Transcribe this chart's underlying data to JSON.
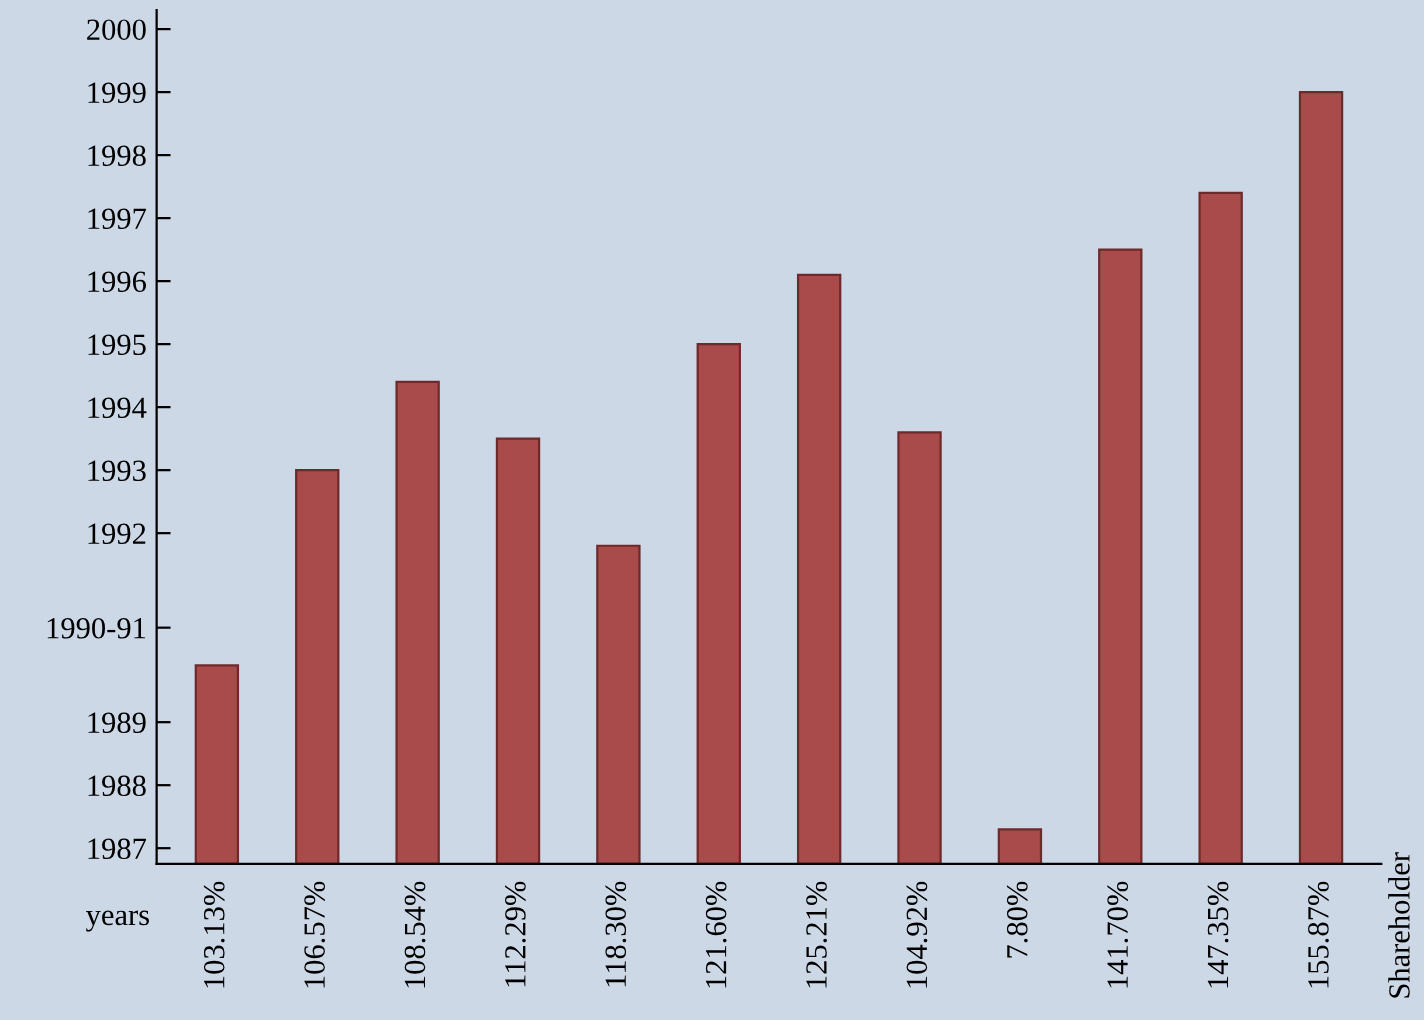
{
  "chart_data": {
    "type": "bar",
    "categories": [
      "103.13%",
      "106.57%",
      "108.54%",
      "112.29%",
      "118.30%",
      "121.60%",
      "125.21%",
      "104.92%",
      "7.80%",
      "141.70%",
      "147.35%",
      "155.87%"
    ],
    "values": [
      1989.9,
      1993.0,
      1994.4,
      1993.5,
      1991.8,
      1995.0,
      1996.1,
      1993.6,
      1987.3,
      1996.5,
      1997.4,
      1999.0
    ],
    "color": "#a94b4b",
    "ylabel": "years",
    "annotations": [
      "Shareholder"
    ],
    "ylim": [
      1986.75,
      2000.3
    ],
    "yticks": [
      1987,
      1988,
      1989,
      {
        "value": 1990.5,
        "label": "1990-91"
      },
      1992,
      1993,
      1994,
      1995,
      1996,
      1997,
      1998,
      1999,
      2000
    ],
    "grid": false,
    "legend": false
  }
}
